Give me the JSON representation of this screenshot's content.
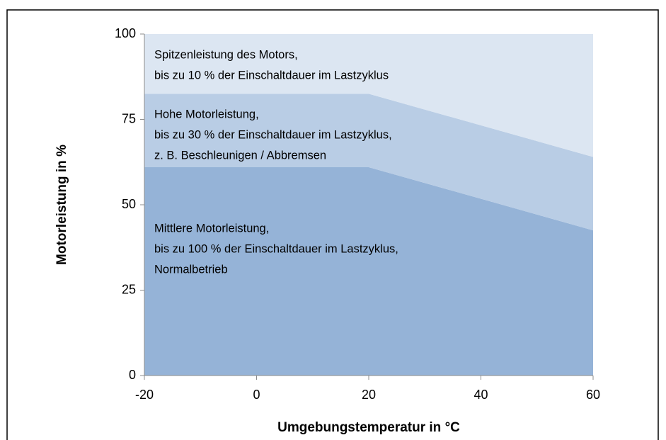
{
  "chart_data": {
    "type": "stacked_area",
    "x_label": "Umgebungstemperatur in °C",
    "y_label": "Motorleistung in %",
    "x": [
      -20,
      20,
      60
    ],
    "xlim": [
      -20,
      60
    ],
    "xticks": [
      -20,
      0,
      20,
      40,
      60
    ],
    "ylim": [
      0,
      100
    ],
    "yticks": [
      0,
      25,
      50,
      75,
      100
    ],
    "series": [
      {
        "label": [
          "Mittlere Motorleistung,",
          "bis zu 100 % der Einschaltdauer im Lastzyklus,",
          "Normalbetrieb"
        ],
        "color": "#95b3d7",
        "values": [
          61,
          61,
          42.5
        ]
      },
      {
        "label": [
          "Hohe Motorleistung,",
          "bis zu 30 % der Einschaltdauer im Lastzyklus,",
          "z. B. Beschleunigen / Abbremsen"
        ],
        "color": "#b9cde5",
        "values": [
          21.5,
          21.5,
          21.5
        ]
      },
      {
        "label": [
          "Spitzenleistung des Motors,",
          "bis zu 10 % der Einschaltdauer im Lastzyklus"
        ],
        "color": "#dce6f2",
        "values": [
          17.5,
          17.5,
          36
        ]
      }
    ]
  }
}
